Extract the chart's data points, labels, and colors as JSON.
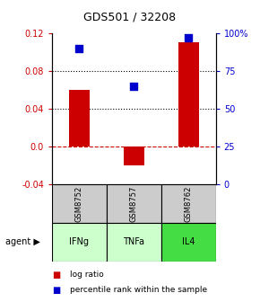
{
  "title": "GDS501 / 32208",
  "samples": [
    "GSM8752",
    "GSM8757",
    "GSM8762"
  ],
  "agents": [
    "IFNg",
    "TNFa",
    "IL4"
  ],
  "log_ratios": [
    0.06,
    -0.02,
    0.11
  ],
  "percentiles": [
    0.9,
    0.65,
    0.97
  ],
  "ylim_left": [
    -0.04,
    0.12
  ],
  "ylim_right": [
    0.0,
    1.0
  ],
  "yticks_left": [
    -0.04,
    0.0,
    0.04,
    0.08,
    0.12
  ],
  "yticks_right": [
    0.0,
    0.25,
    0.5,
    0.75,
    1.0
  ],
  "ytick_right_labels": [
    "0",
    "25",
    "50",
    "75",
    "100%"
  ],
  "dotted_lines": [
    0.04,
    0.08
  ],
  "zero_line": 0.0,
  "bar_color": "#cc0000",
  "dot_color": "#0000cc",
  "bar_width": 0.38,
  "dot_size": 40,
  "sample_box_color": "#cccccc",
  "agent_colors": [
    "#ccffcc",
    "#ccffcc",
    "#44dd44"
  ],
  "left_tick_color": "#cc0000",
  "right_tick_color": "#0000cc",
  "legend_bar_label": "log ratio",
  "legend_dot_label": "percentile rank within the sample",
  "agent_label": "agent"
}
